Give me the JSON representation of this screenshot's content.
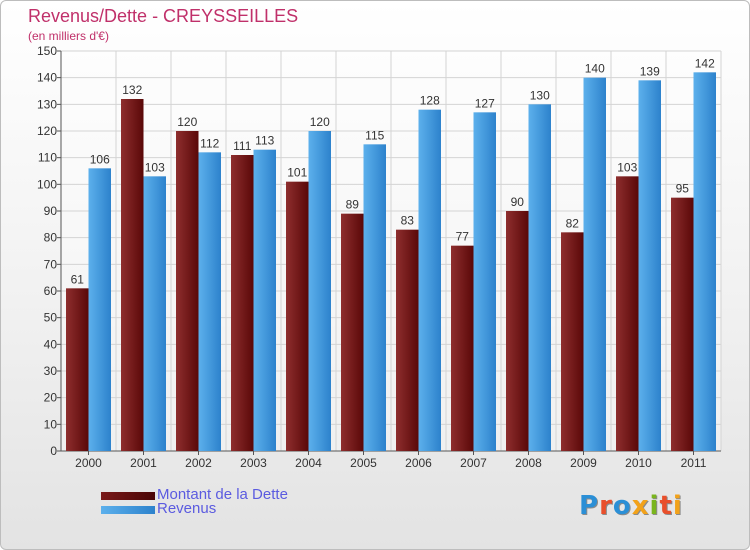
{
  "chart_data": {
    "type": "bar",
    "title": "Revenus/Dette - CREYSSEILLES",
    "subtitle": "(en milliers d'€)",
    "categories": [
      "2000",
      "2001",
      "2002",
      "2003",
      "2004",
      "2005",
      "2006",
      "2007",
      "2008",
      "2009",
      "2010",
      "2011"
    ],
    "series": [
      {
        "name": "Montant de la Dette",
        "color": "#7a1a1a",
        "values": [
          61,
          132,
          120,
          111,
          101,
          89,
          83,
          77,
          90,
          82,
          103,
          95
        ]
      },
      {
        "name": "Revenus",
        "color": "#4a9fe0",
        "values": [
          106,
          103,
          112,
          113,
          120,
          115,
          128,
          127,
          130,
          140,
          139,
          142
        ]
      }
    ],
    "ylim": [
      0,
      150
    ],
    "ytick_step": 10,
    "grid": true,
    "legend_position": "bottom-left"
  },
  "logo": {
    "text": "Proxiti"
  }
}
